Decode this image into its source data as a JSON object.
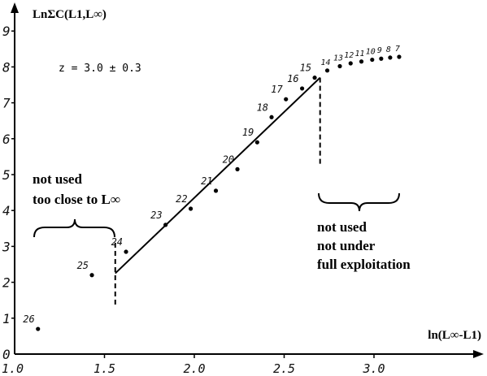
{
  "chart_data": {
    "type": "scatter",
    "title": "",
    "xlabel": "ln(L∞-L1)",
    "ylabel": "LnΣC(L1,L∞)",
    "xlim": [
      1.0,
      3.2
    ],
    "ylim": [
      0,
      9
    ],
    "x_ticks": [
      "1.0",
      "1.5",
      "2.0",
      "2.5",
      "3.0"
    ],
    "y_ticks": [
      "0",
      "1",
      "2",
      "3",
      "4",
      "5",
      "6",
      "7",
      "8",
      "9"
    ],
    "annotation_z": "z = 3.0 ± 0.3",
    "annotation_left_lines": [
      "not used",
      "too close to L∞"
    ],
    "annotation_right_lines": [
      "not used",
      "not under",
      "full exploitation"
    ],
    "regression_line": {
      "x": [
        1.56,
        2.7
      ],
      "y": [
        2.25,
        7.7
      ]
    },
    "cutoff_left_x": 1.56,
    "cutoff_right_x": 2.7,
    "points": [
      {
        "label": "26",
        "x": 1.13,
        "y": 0.7
      },
      {
        "label": "25",
        "x": 1.43,
        "y": 2.2
      },
      {
        "label": "24",
        "x": 1.62,
        "y": 2.85
      },
      {
        "label": "23",
        "x": 1.84,
        "y": 3.6
      },
      {
        "label": "22",
        "x": 1.98,
        "y": 4.05
      },
      {
        "label": "21",
        "x": 2.12,
        "y": 4.55
      },
      {
        "label": "20",
        "x": 2.24,
        "y": 5.15
      },
      {
        "label": "19",
        "x": 2.35,
        "y": 5.9
      },
      {
        "label": "18",
        "x": 2.43,
        "y": 6.6
      },
      {
        "label": "17",
        "x": 2.51,
        "y": 7.1
      },
      {
        "label": "16",
        "x": 2.6,
        "y": 7.4
      },
      {
        "label": "15",
        "x": 2.67,
        "y": 7.7
      },
      {
        "label": "14",
        "x": 2.74,
        "y": 7.9
      },
      {
        "label": "13",
        "x": 2.81,
        "y": 8.02
      },
      {
        "label": "12",
        "x": 2.87,
        "y": 8.1
      },
      {
        "label": "11",
        "x": 2.93,
        "y": 8.15
      },
      {
        "label": "10",
        "x": 2.99,
        "y": 8.2
      },
      {
        "label": "9",
        "x": 3.04,
        "y": 8.23
      },
      {
        "label": "8",
        "x": 3.09,
        "y": 8.26
      },
      {
        "label": "7",
        "x": 3.14,
        "y": 8.28
      }
    ]
  }
}
